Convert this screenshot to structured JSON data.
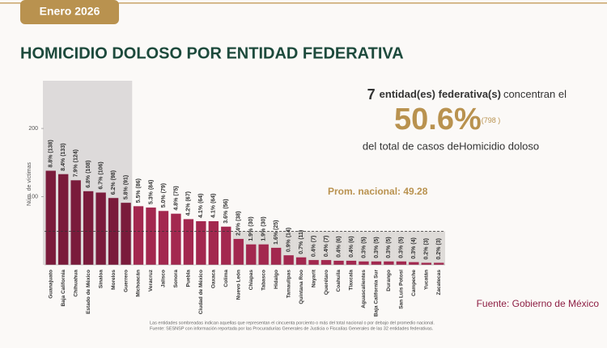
{
  "header": {
    "date": "Enero 2026"
  },
  "chart_data": {
    "type": "bar",
    "title": "HOMICIDIO DOLOSO POR ENTIDAD FEDERATIVA",
    "y_label": "Núm. de víctimas",
    "categories": [
      "Guanajuato",
      "Baja California",
      "Chihuahua",
      "Estado de México",
      "Sinaloa",
      "Morelos",
      "Guerrero",
      "Michoacán",
      "Veracruz",
      "Jalisco",
      "Sonora",
      "Puebla",
      "Ciudad de México",
      "Oaxaca",
      "Colima",
      "Nuevo León",
      "Chiapas",
      "Tabasco",
      "Hidalgo",
      "Tamaulipas",
      "Quintana Roo",
      "Nayarit",
      "Querétaro",
      "Coahuila",
      "Tlaxcala",
      "Aguascalientes",
      "Baja California Sur",
      "Durango",
      "San Luis Potosí",
      "Campeche",
      "Yucatán",
      "Zacatecas"
    ],
    "values": [
      138,
      133,
      124,
      108,
      106,
      98,
      91,
      86,
      84,
      79,
      75,
      67,
      64,
      64,
      56,
      38,
      30,
      30,
      25,
      14,
      11,
      7,
      7,
      6,
      6,
      5,
      5,
      5,
      5,
      4,
      3,
      3
    ],
    "value_labels": [
      "8.8% (138)",
      "8.4% (133)",
      "7.9% (124)",
      "6.8% (108)",
      "6.7% (106)",
      "6.2% (98)",
      "5.8% (91)",
      "5.5% (86)",
      "5.3% (84)",
      "5.0% (79)",
      "4.8% (75)",
      "4.2% (67)",
      "4.1% (64)",
      "4.1% (64)",
      "3.6% (56)",
      "2.4% (38)",
      "1.9% (30)",
      "1.9% (30)",
      "1.6% (25)",
      "0.9% (14)",
      "0.7% (11)",
      "0.4% (7)",
      "0.4% (7)",
      "0.4% (6)",
      "0.4% (6)",
      "0.3% (5)",
      "0.3% (5)",
      "0.3% (5)",
      "0.3% (5)",
      "0.3% (4)",
      "0.2% (3)",
      "0.2% (3)"
    ],
    "highlight": [
      true,
      true,
      true,
      true,
      true,
      true,
      true,
      false,
      false,
      false,
      false,
      false,
      false,
      false,
      false,
      false,
      false,
      false,
      false,
      false,
      false,
      false,
      false,
      false,
      false,
      false,
      false,
      false,
      false,
      false,
      false,
      false
    ],
    "color": "#a3284f",
    "highlight_color": "#7a1b3b",
    "ylim": [
      0,
      270
    ],
    "yticks": [
      100,
      200
    ],
    "average": {
      "value": 49.28,
      "label": "Prom. nacional: 49.28"
    }
  },
  "summary": {
    "count": "7",
    "entities": "entidad(es) federativa(s)",
    "verb": "concentran el",
    "share": "50.6%",
    "total": "(798 )",
    "tail": "del total de casos deHomicidio doloso"
  },
  "source": "Fuente: Gobierno de México",
  "footnotes": [
    "Las entidades sombreadas indican aquellas que representan el cincuenta porciento o más del total nacional o por debajo del promedio nacional.",
    "Fuente: SESNSP con información reportada por las Procuradurías Generales de Justicia o Fiscalías Generales de las 32 entidades federativas."
  ]
}
